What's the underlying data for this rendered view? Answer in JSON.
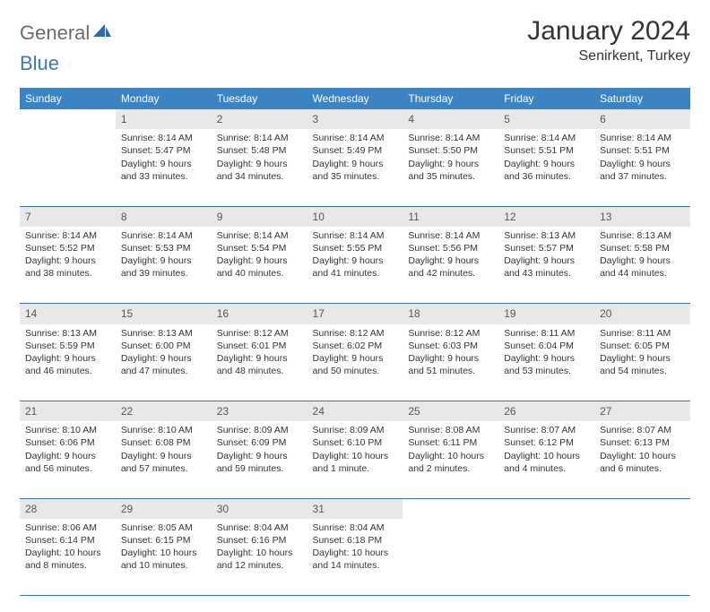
{
  "logo": {
    "word1": "General",
    "word2": "Blue"
  },
  "title": "January 2024",
  "location": "Senirkent, Turkey",
  "day_headers": [
    "Sunday",
    "Monday",
    "Tuesday",
    "Wednesday",
    "Thursday",
    "Friday",
    "Saturday"
  ],
  "colors": {
    "header_bg": "#3a84c4",
    "header_fg": "#ffffff",
    "daynum_bg": "#e8e8e8",
    "border": "#3a7ab8",
    "logo_gray": "#6b6b6b",
    "logo_blue": "#3a7ab8",
    "text": "#333333"
  },
  "weeks": [
    {
      "nums": [
        "",
        "1",
        "2",
        "3",
        "4",
        "5",
        "6"
      ],
      "cells": [
        {
          "lines": []
        },
        {
          "lines": [
            "Sunrise: 8:14 AM",
            "Sunset: 5:47 PM",
            "Daylight: 9 hours",
            "and 33 minutes."
          ]
        },
        {
          "lines": [
            "Sunrise: 8:14 AM",
            "Sunset: 5:48 PM",
            "Daylight: 9 hours",
            "and 34 minutes."
          ]
        },
        {
          "lines": [
            "Sunrise: 8:14 AM",
            "Sunset: 5:49 PM",
            "Daylight: 9 hours",
            "and 35 minutes."
          ]
        },
        {
          "lines": [
            "Sunrise: 8:14 AM",
            "Sunset: 5:50 PM",
            "Daylight: 9 hours",
            "and 35 minutes."
          ]
        },
        {
          "lines": [
            "Sunrise: 8:14 AM",
            "Sunset: 5:51 PM",
            "Daylight: 9 hours",
            "and 36 minutes."
          ]
        },
        {
          "lines": [
            "Sunrise: 8:14 AM",
            "Sunset: 5:51 PM",
            "Daylight: 9 hours",
            "and 37 minutes."
          ]
        }
      ]
    },
    {
      "nums": [
        "7",
        "8",
        "9",
        "10",
        "11",
        "12",
        "13"
      ],
      "cells": [
        {
          "lines": [
            "Sunrise: 8:14 AM",
            "Sunset: 5:52 PM",
            "Daylight: 9 hours",
            "and 38 minutes."
          ]
        },
        {
          "lines": [
            "Sunrise: 8:14 AM",
            "Sunset: 5:53 PM",
            "Daylight: 9 hours",
            "and 39 minutes."
          ]
        },
        {
          "lines": [
            "Sunrise: 8:14 AM",
            "Sunset: 5:54 PM",
            "Daylight: 9 hours",
            "and 40 minutes."
          ]
        },
        {
          "lines": [
            "Sunrise: 8:14 AM",
            "Sunset: 5:55 PM",
            "Daylight: 9 hours",
            "and 41 minutes."
          ]
        },
        {
          "lines": [
            "Sunrise: 8:14 AM",
            "Sunset: 5:56 PM",
            "Daylight: 9 hours",
            "and 42 minutes."
          ]
        },
        {
          "lines": [
            "Sunrise: 8:13 AM",
            "Sunset: 5:57 PM",
            "Daylight: 9 hours",
            "and 43 minutes."
          ]
        },
        {
          "lines": [
            "Sunrise: 8:13 AM",
            "Sunset: 5:58 PM",
            "Daylight: 9 hours",
            "and 44 minutes."
          ]
        }
      ]
    },
    {
      "nums": [
        "14",
        "15",
        "16",
        "17",
        "18",
        "19",
        "20"
      ],
      "cells": [
        {
          "lines": [
            "Sunrise: 8:13 AM",
            "Sunset: 5:59 PM",
            "Daylight: 9 hours",
            "and 46 minutes."
          ]
        },
        {
          "lines": [
            "Sunrise: 8:13 AM",
            "Sunset: 6:00 PM",
            "Daylight: 9 hours",
            "and 47 minutes."
          ]
        },
        {
          "lines": [
            "Sunrise: 8:12 AM",
            "Sunset: 6:01 PM",
            "Daylight: 9 hours",
            "and 48 minutes."
          ]
        },
        {
          "lines": [
            "Sunrise: 8:12 AM",
            "Sunset: 6:02 PM",
            "Daylight: 9 hours",
            "and 50 minutes."
          ]
        },
        {
          "lines": [
            "Sunrise: 8:12 AM",
            "Sunset: 6:03 PM",
            "Daylight: 9 hours",
            "and 51 minutes."
          ]
        },
        {
          "lines": [
            "Sunrise: 8:11 AM",
            "Sunset: 6:04 PM",
            "Daylight: 9 hours",
            "and 53 minutes."
          ]
        },
        {
          "lines": [
            "Sunrise: 8:11 AM",
            "Sunset: 6:05 PM",
            "Daylight: 9 hours",
            "and 54 minutes."
          ]
        }
      ]
    },
    {
      "nums": [
        "21",
        "22",
        "23",
        "24",
        "25",
        "26",
        "27"
      ],
      "cells": [
        {
          "lines": [
            "Sunrise: 8:10 AM",
            "Sunset: 6:06 PM",
            "Daylight: 9 hours",
            "and 56 minutes."
          ]
        },
        {
          "lines": [
            "Sunrise: 8:10 AM",
            "Sunset: 6:08 PM",
            "Daylight: 9 hours",
            "and 57 minutes."
          ]
        },
        {
          "lines": [
            "Sunrise: 8:09 AM",
            "Sunset: 6:09 PM",
            "Daylight: 9 hours",
            "and 59 minutes."
          ]
        },
        {
          "lines": [
            "Sunrise: 8:09 AM",
            "Sunset: 6:10 PM",
            "Daylight: 10 hours",
            "and 1 minute."
          ]
        },
        {
          "lines": [
            "Sunrise: 8:08 AM",
            "Sunset: 6:11 PM",
            "Daylight: 10 hours",
            "and 2 minutes."
          ]
        },
        {
          "lines": [
            "Sunrise: 8:07 AM",
            "Sunset: 6:12 PM",
            "Daylight: 10 hours",
            "and 4 minutes."
          ]
        },
        {
          "lines": [
            "Sunrise: 8:07 AM",
            "Sunset: 6:13 PM",
            "Daylight: 10 hours",
            "and 6 minutes."
          ]
        }
      ]
    },
    {
      "nums": [
        "28",
        "29",
        "30",
        "31",
        "",
        "",
        ""
      ],
      "cells": [
        {
          "lines": [
            "Sunrise: 8:06 AM",
            "Sunset: 6:14 PM",
            "Daylight: 10 hours",
            "and 8 minutes."
          ]
        },
        {
          "lines": [
            "Sunrise: 8:05 AM",
            "Sunset: 6:15 PM",
            "Daylight: 10 hours",
            "and 10 minutes."
          ]
        },
        {
          "lines": [
            "Sunrise: 8:04 AM",
            "Sunset: 6:16 PM",
            "Daylight: 10 hours",
            "and 12 minutes."
          ]
        },
        {
          "lines": [
            "Sunrise: 8:04 AM",
            "Sunset: 6:18 PM",
            "Daylight: 10 hours",
            "and 14 minutes."
          ]
        },
        {
          "lines": []
        },
        {
          "lines": []
        },
        {
          "lines": []
        }
      ]
    }
  ]
}
